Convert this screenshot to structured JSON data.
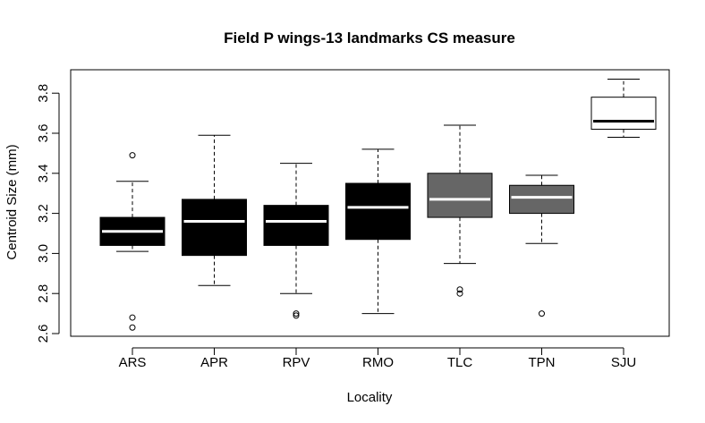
{
  "chart_data": {
    "type": "box",
    "title": "Field P wings-13 landmarks CS measure",
    "xlabel": "Locality",
    "ylabel": "Centroid Size (mm)",
    "ylim": [
      2.6,
      3.9
    ],
    "yticks": [
      "2.6",
      "2.8",
      "3.0",
      "3.2",
      "3.4",
      "3.6",
      "3.8"
    ],
    "categories": [
      "ARS",
      "APR",
      "RPV",
      "RMO",
      "TLC",
      "TPN",
      "SJU"
    ],
    "boxes": [
      {
        "label": "ARS",
        "whisker_low": 3.01,
        "q1": 3.04,
        "median": 3.11,
        "q3": 3.18,
        "whisker_high": 3.36,
        "outliers": [
          3.49,
          2.68,
          2.63
        ],
        "fill": "#000000",
        "median_color": "#ffffff"
      },
      {
        "label": "APR",
        "whisker_low": 2.84,
        "q1": 2.99,
        "median": 3.16,
        "q3": 3.27,
        "whisker_high": 3.59,
        "outliers": [],
        "fill": "#000000",
        "median_color": "#ffffff"
      },
      {
        "label": "RPV",
        "whisker_low": 2.8,
        "q1": 3.04,
        "median": 3.16,
        "q3": 3.24,
        "whisker_high": 3.45,
        "outliers": [
          2.7,
          2.69
        ],
        "fill": "#000000",
        "median_color": "#ffffff"
      },
      {
        "label": "RMO",
        "whisker_low": 2.7,
        "q1": 3.07,
        "median": 3.23,
        "q3": 3.35,
        "whisker_high": 3.52,
        "outliers": [],
        "fill": "#000000",
        "median_color": "#ffffff"
      },
      {
        "label": "TLC",
        "whisker_low": 2.95,
        "q1": 3.18,
        "median": 3.27,
        "q3": 3.4,
        "whisker_high": 3.64,
        "outliers": [
          2.82,
          2.8
        ],
        "fill": "#666666",
        "median_color": "#ffffff"
      },
      {
        "label": "TPN",
        "whisker_low": 3.05,
        "q1": 3.2,
        "median": 3.28,
        "q3": 3.34,
        "whisker_high": 3.39,
        "outliers": [
          2.7
        ],
        "fill": "#666666",
        "median_color": "#ffffff"
      },
      {
        "label": "SJU",
        "whisker_low": 3.58,
        "q1": 3.62,
        "median": 3.66,
        "q3": 3.78,
        "whisker_high": 3.87,
        "outliers": [],
        "fill": "#ffffff",
        "median_color": "#000000"
      }
    ],
    "grid": false,
    "legend": "none"
  }
}
